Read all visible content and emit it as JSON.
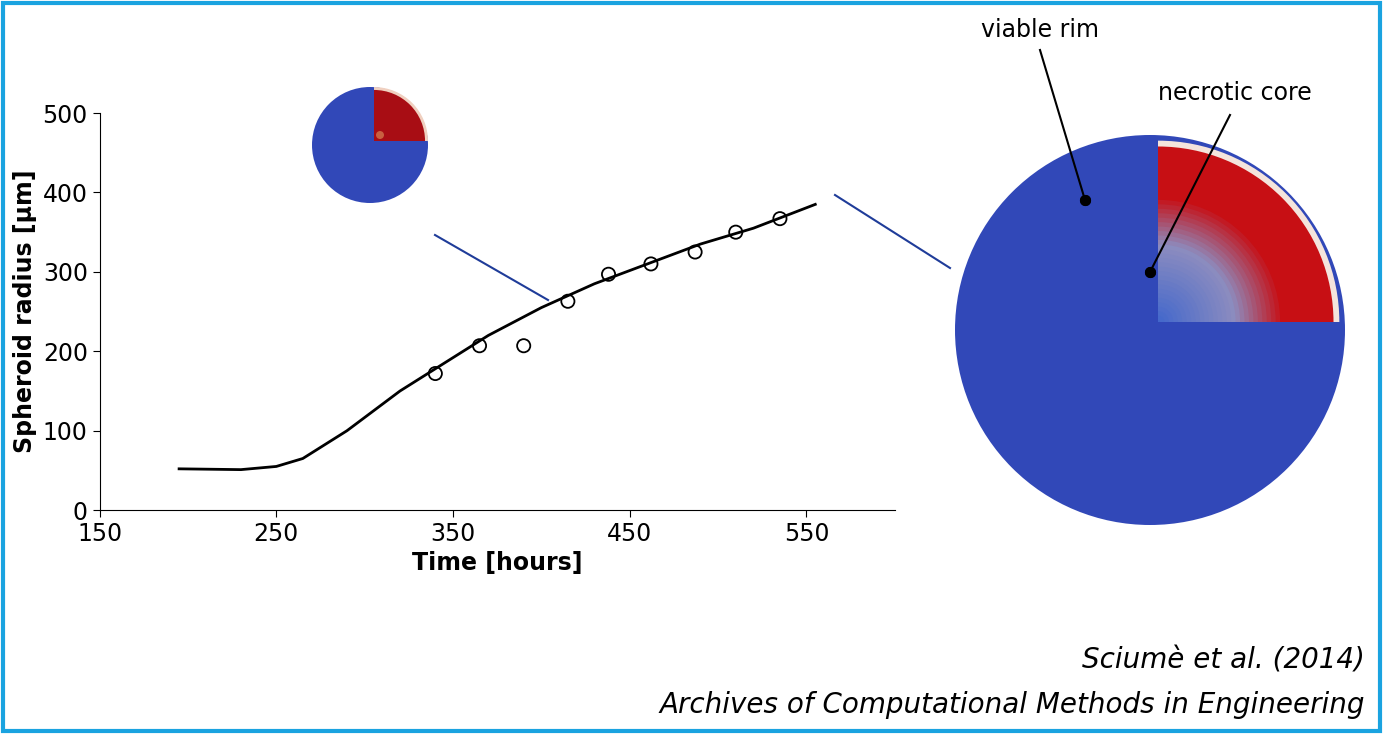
{
  "chart_data": {
    "type": "line",
    "xlabel": "Time [hours]",
    "ylabel": "Spheroid radius [μm]",
    "xlim": [
      150,
      600
    ],
    "xticks": [
      150,
      250,
      350,
      450,
      550
    ],
    "ylim": [
      0,
      500
    ],
    "yticks": [
      0,
      100,
      200,
      300,
      400,
      500
    ],
    "grid": false,
    "series": [
      {
        "type": "line",
        "color": "#000000",
        "line_style": "solid",
        "x": [
          195,
          230,
          250,
          265,
          290,
          320,
          345,
          370,
          400,
          430,
          460,
          490,
          520,
          555
        ],
        "values": [
          52,
          51,
          55,
          65,
          100,
          150,
          185,
          220,
          255,
          285,
          310,
          335,
          355,
          385
        ]
      },
      {
        "type": "scatter",
        "color": "#000000",
        "marker": "o",
        "x": [
          340,
          365,
          390,
          415,
          438,
          462,
          487,
          510,
          535
        ],
        "values": [
          172,
          207,
          207,
          263,
          297,
          310,
          325,
          350,
          367
        ]
      }
    ],
    "annotations": [
      "viable rim",
      "necrotic core"
    ],
    "source": [
      "Sciumè et al. (2014)",
      "Archives of Computational Methods in Engineering"
    ]
  }
}
